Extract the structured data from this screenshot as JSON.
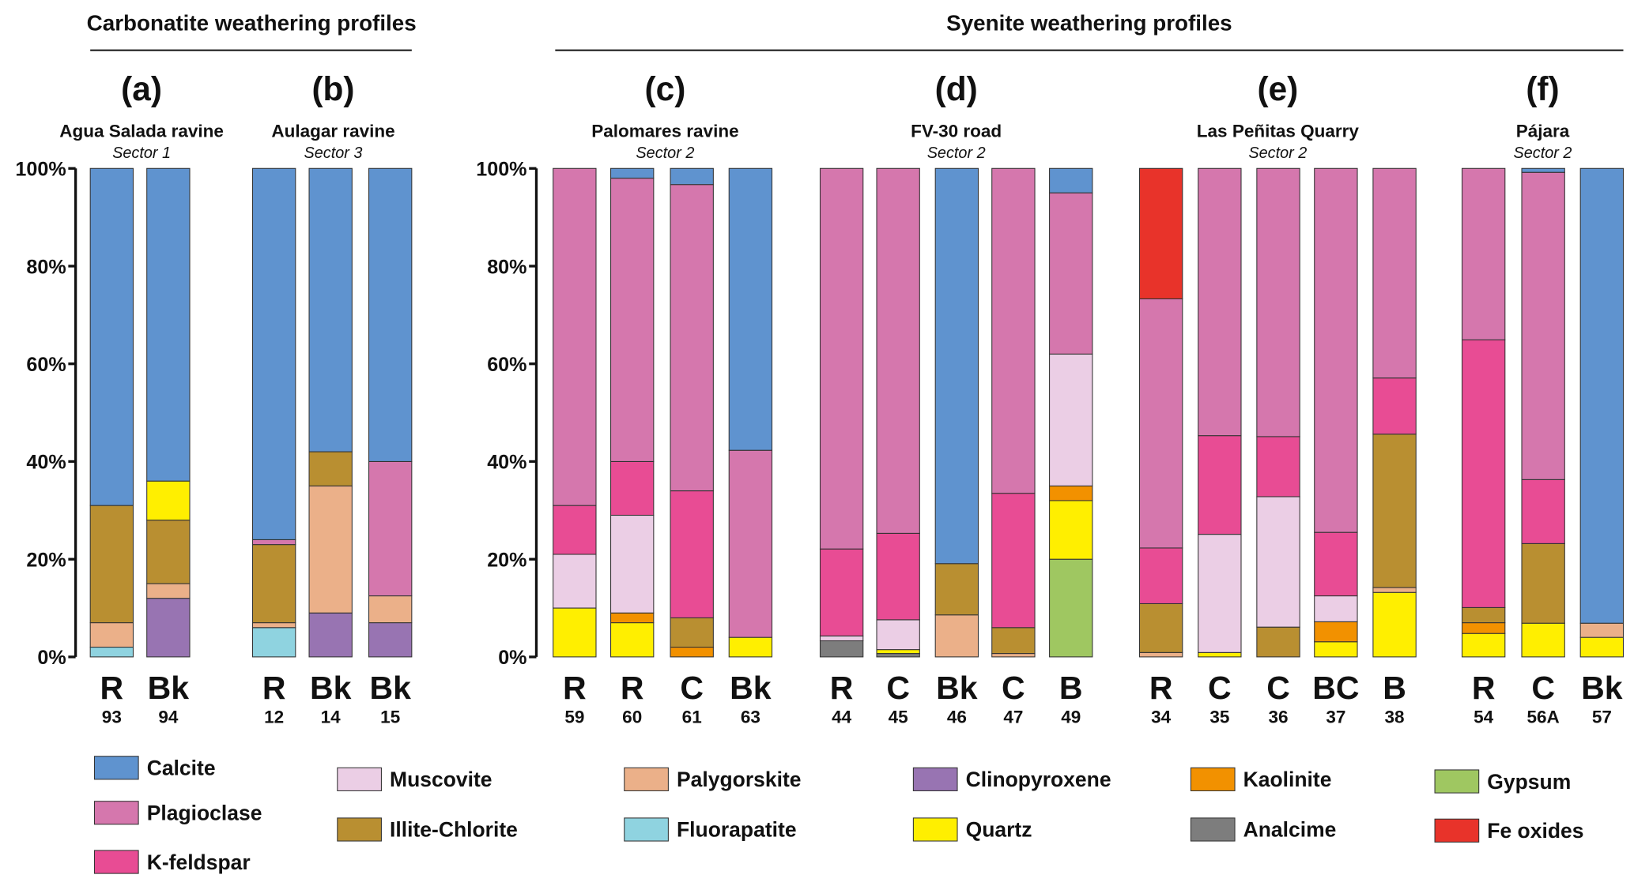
{
  "chart_data": {
    "type": "bar",
    "stacked": true,
    "ylim": [
      0,
      100
    ],
    "y_ticks": [
      "0%",
      "20%",
      "40%",
      "60%",
      "80%",
      "100%"
    ],
    "grid": false,
    "legend_placement": "bottom",
    "groups": [
      {
        "title": "Carbonatite weathering profiles",
        "panels": [
          "a",
          "b"
        ]
      },
      {
        "title": "Syenite weathering profiles",
        "panels": [
          "c",
          "d",
          "e",
          "f"
        ]
      }
    ],
    "minerals": [
      {
        "key": "calcite",
        "name": "Calcite",
        "color": "#5f93cf"
      },
      {
        "key": "plagioclase",
        "name": "Plagioclase",
        "color": "#d577ad"
      },
      {
        "key": "kfeldspar",
        "name": "K-feldspar",
        "color": "#e84c94"
      },
      {
        "key": "muscovite",
        "name": "Muscovite",
        "color": "#ebcee5"
      },
      {
        "key": "illite",
        "name": "Illite-Chlorite",
        "color": "#b98f31"
      },
      {
        "key": "palygorskite",
        "name": "Palygorskite",
        "color": "#ebb089"
      },
      {
        "key": "fluorapatite",
        "name": "Fluorapatite",
        "color": "#8fd3e0"
      },
      {
        "key": "clinopyroxene",
        "name": "Clinopyroxene",
        "color": "#9874b2"
      },
      {
        "key": "quartz",
        "name": "Quartz",
        "color": "#ffef00"
      },
      {
        "key": "kaolinite",
        "name": "Kaolinite",
        "color": "#f29100"
      },
      {
        "key": "analcime",
        "name": "Analcime",
        "color": "#7d7d7d"
      },
      {
        "key": "gypsum",
        "name": "Gypsum",
        "color": "#9fc761"
      },
      {
        "key": "feoxides",
        "name": "Fe oxides",
        "color": "#e8332a"
      }
    ],
    "panels": [
      {
        "id": "a",
        "letter": "(a)",
        "site": "Agua Salada ravine",
        "sector": "Sector 1",
        "samples": [
          {
            "horizon": "R",
            "id": "93",
            "segments": [
              [
                "fluorapatite",
                2
              ],
              [
                "palygorskite",
                5
              ],
              [
                "illite",
                24
              ],
              [
                "calcite",
                69
              ]
            ]
          },
          {
            "horizon": "Bk",
            "id": "94",
            "segments": [
              [
                "clinopyroxene",
                12
              ],
              [
                "palygorskite",
                3
              ],
              [
                "illite",
                13
              ],
              [
                "quartz",
                8
              ],
              [
                "calcite",
                64
              ]
            ]
          }
        ]
      },
      {
        "id": "b",
        "letter": "(b)",
        "site": "Aulagar ravine",
        "sector": "Sector 3",
        "samples": [
          {
            "horizon": "R",
            "id": "12",
            "segments": [
              [
                "fluorapatite",
                6
              ],
              [
                "palygorskite",
                1
              ],
              [
                "illite",
                16
              ],
              [
                "plagioclase",
                1
              ],
              [
                "calcite",
                76
              ]
            ]
          },
          {
            "horizon": "Bk",
            "id": "14",
            "segments": [
              [
                "clinopyroxene",
                9
              ],
              [
                "palygorskite",
                26
              ],
              [
                "illite",
                7
              ],
              [
                "calcite",
                58
              ]
            ]
          },
          {
            "horizon": "Bk",
            "id": "15",
            "segments": [
              [
                "clinopyroxene",
                7
              ],
              [
                "palygorskite",
                5.5
              ],
              [
                "plagioclase",
                27.5
              ],
              [
                "calcite",
                60
              ]
            ]
          }
        ]
      },
      {
        "id": "c",
        "letter": "(c)",
        "site": "Palomares ravine",
        "sector": "Sector 2",
        "samples": [
          {
            "horizon": "R",
            "id": "59",
            "segments": [
              [
                "quartz",
                10
              ],
              [
                "muscovite",
                11
              ],
              [
                "kfeldspar",
                10
              ],
              [
                "plagioclase",
                69
              ]
            ]
          },
          {
            "horizon": "R",
            "id": "60",
            "segments": [
              [
                "quartz",
                7
              ],
              [
                "kaolinite",
                2
              ],
              [
                "muscovite",
                20
              ],
              [
                "kfeldspar",
                11
              ],
              [
                "plagioclase",
                58
              ],
              [
                "calcite",
                2
              ]
            ]
          },
          {
            "horizon": "C",
            "id": "61",
            "segments": [
              [
                "kaolinite",
                2
              ],
              [
                "illite",
                6
              ],
              [
                "kfeldspar",
                26
              ],
              [
                "plagioclase",
                62.7
              ],
              [
                "calcite",
                3.3
              ]
            ]
          },
          {
            "horizon": "Bk",
            "id": "63",
            "segments": [
              [
                "quartz",
                4
              ],
              [
                "plagioclase",
                38.3
              ],
              [
                "calcite",
                57.7
              ]
            ]
          }
        ]
      },
      {
        "id": "d",
        "letter": "(d)",
        "site": "FV-30 road",
        "sector": "Sector 2",
        "samples": [
          {
            "horizon": "R",
            "id": "44",
            "segments": [
              [
                "analcime",
                3.3
              ],
              [
                "muscovite",
                1
              ],
              [
                "kfeldspar",
                17.8
              ],
              [
                "plagioclase",
                77.9
              ]
            ]
          },
          {
            "horizon": "C",
            "id": "45",
            "segments": [
              [
                "analcime",
                0.7
              ],
              [
                "quartz",
                0.8
              ],
              [
                "muscovite",
                6.1
              ],
              [
                "kfeldspar",
                17.7
              ],
              [
                "plagioclase",
                74.7
              ]
            ]
          },
          {
            "horizon": "Bk",
            "id": "46",
            "segments": [
              [
                "palygorskite",
                8.6
              ],
              [
                "illite",
                10.5
              ],
              [
                "calcite",
                80.9
              ]
            ]
          },
          {
            "horizon": "C",
            "id": "47",
            "segments": [
              [
                "palygorskite",
                0.7
              ],
              [
                "illite",
                5.3
              ],
              [
                "kfeldspar",
                27.5
              ],
              [
                "plagioclase",
                66.5
              ]
            ]
          },
          {
            "horizon": "B",
            "id": "49",
            "segments": [
              [
                "gypsum",
                20
              ],
              [
                "quartz",
                12
              ],
              [
                "kaolinite",
                3
              ],
              [
                "muscovite",
                27
              ],
              [
                "plagioclase",
                33
              ],
              [
                "calcite",
                5
              ]
            ]
          }
        ]
      },
      {
        "id": "e",
        "letter": "(e)",
        "site": "Las Peñitas Quarry",
        "sector": "Sector 2",
        "samples": [
          {
            "horizon": "R",
            "id": "34",
            "segments": [
              [
                "palygorskite",
                0.9
              ],
              [
                "illite",
                10
              ],
              [
                "kfeldspar",
                11.4
              ],
              [
                "plagioclase",
                51
              ],
              [
                "feoxides",
                26.7
              ]
            ]
          },
          {
            "horizon": "C",
            "id": "35",
            "segments": [
              [
                "quartz",
                0.9
              ],
              [
                "muscovite",
                24.2
              ],
              [
                "kfeldspar",
                20.2
              ],
              [
                "plagioclase",
                54.7
              ]
            ]
          },
          {
            "horizon": "C",
            "id": "36",
            "segments": [
              [
                "illite",
                6.1
              ],
              [
                "muscovite",
                26.7
              ],
              [
                "kfeldspar",
                12.3
              ],
              [
                "plagioclase",
                54.9
              ]
            ]
          },
          {
            "horizon": "BC",
            "id": "37",
            "segments": [
              [
                "quartz",
                3.1
              ],
              [
                "kaolinite",
                4.1
              ],
              [
                "muscovite",
                5.3
              ],
              [
                "kfeldspar",
                13
              ],
              [
                "plagioclase",
                74.5
              ]
            ]
          },
          {
            "horizon": "B",
            "id": "38",
            "segments": [
              [
                "quartz",
                13.2
              ],
              [
                "palygorskite",
                1
              ],
              [
                "illite",
                31.4
              ],
              [
                "kfeldspar",
                11.5
              ],
              [
                "plagioclase",
                42.9
              ]
            ]
          }
        ]
      },
      {
        "id": "f",
        "letter": "(f)",
        "site": "Pájara",
        "sector": "Sector 2",
        "samples": [
          {
            "horizon": "R",
            "id": "54",
            "segments": [
              [
                "quartz",
                4.8
              ],
              [
                "kaolinite",
                2.2
              ],
              [
                "illite",
                3.1
              ],
              [
                "kfeldspar",
                54.8
              ],
              [
                "plagioclase",
                35.1
              ]
            ]
          },
          {
            "horizon": "C",
            "id": "56A",
            "segments": [
              [
                "quartz",
                6.9
              ],
              [
                "illite",
                16.3
              ],
              [
                "kfeldspar",
                13.1
              ],
              [
                "plagioclase",
                62.9
              ],
              [
                "calcite",
                0.8
              ]
            ]
          },
          {
            "horizon": "Bk",
            "id": "57",
            "segments": [
              [
                "quartz",
                4
              ],
              [
                "palygorskite",
                2.9
              ],
              [
                "calcite",
                93.1
              ]
            ]
          }
        ]
      }
    ]
  }
}
